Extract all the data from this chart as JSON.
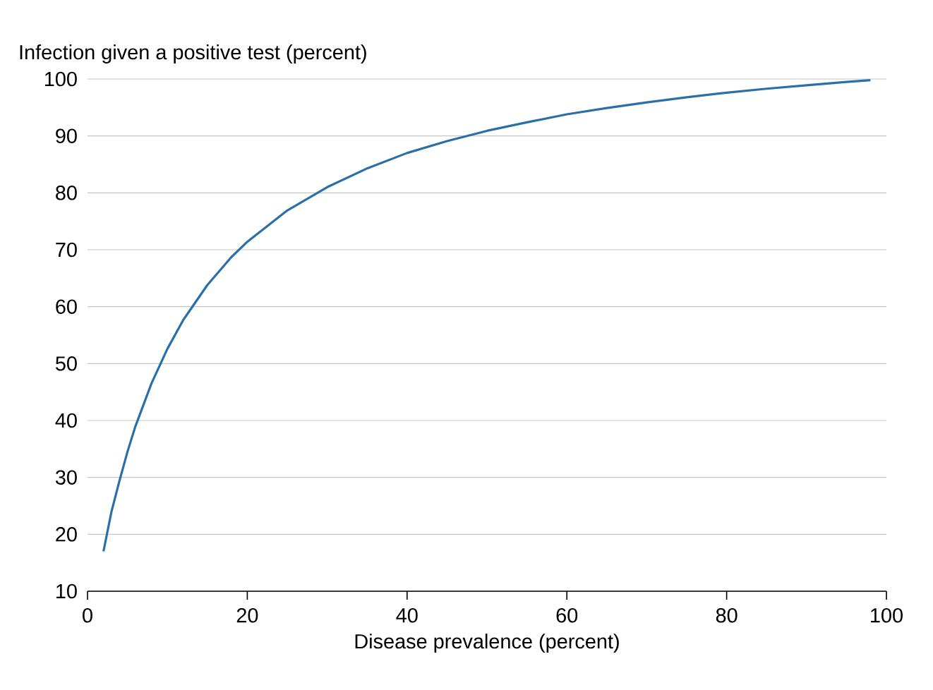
{
  "chart_data": {
    "type": "line",
    "ylabel": "Infection given a positive test (percent)",
    "xlabel": "Disease prevalence (percent)",
    "x": [
      2,
      3,
      4,
      5,
      6,
      8,
      10,
      12,
      15,
      18,
      20,
      25,
      30,
      35,
      40,
      45,
      50,
      55,
      60,
      65,
      70,
      75,
      80,
      85,
      90,
      95,
      98
    ],
    "series": [
      {
        "color": "#2a6fa8",
        "values": [
          17,
          24,
          29.4,
          34.5,
          39,
          46.5,
          52.6,
          57.7,
          63.8,
          68.7,
          71.4,
          76.9,
          81,
          84.3,
          87,
          89.1,
          90.9,
          92.4,
          93.8,
          94.9,
          95.9,
          96.8,
          97.6,
          98.3,
          98.9,
          99.5,
          99.8
        ]
      }
    ],
    "xlim": [
      0,
      100
    ],
    "xticks": [
      0,
      20,
      40,
      60,
      80,
      100
    ],
    "ylim": [
      10,
      100
    ],
    "yticks": [
      10,
      20,
      30,
      40,
      50,
      60,
      70,
      80,
      90,
      100
    ],
    "grid": "y",
    "marker": "none",
    "line_style": "solid"
  }
}
